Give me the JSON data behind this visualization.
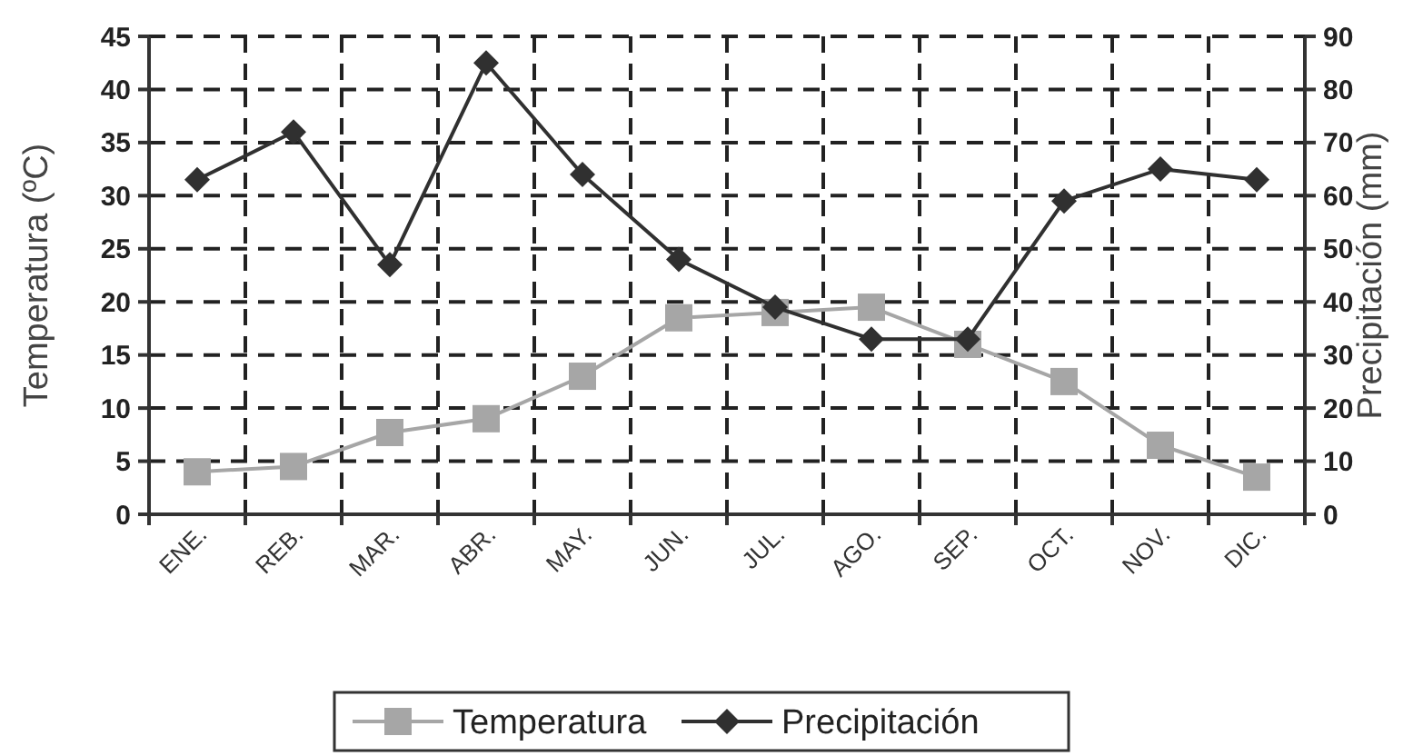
{
  "chart_data": {
    "type": "line",
    "ylabel": "Temperatura (ºC)",
    "y2label": "Precipitación (mm)",
    "categories": [
      "ENE.",
      "REB.",
      "MAR.",
      "ABR.",
      "MAY.",
      "JUN.",
      "JUL.",
      "AGO.",
      "SEP.",
      "OCT.",
      "NOV.",
      "DIC."
    ],
    "series": [
      {
        "name": "Temperatura",
        "color": "#a6a6a6",
        "marker": "square",
        "values": [
          4,
          4.5,
          7.7,
          9,
          13,
          18.5,
          19,
          19.5,
          16,
          12.5,
          6.5,
          3.5
        ]
      },
      {
        "name": "Precipitación",
        "color": "#303030",
        "marker": "diamond",
        "axis": "y2",
        "values": [
          63,
          72,
          47,
          85,
          64,
          48,
          39,
          33,
          33,
          59,
          65,
          63
        ]
      }
    ],
    "ylim": [
      0,
      45
    ],
    "yticks": [
      0,
      5,
      10,
      15,
      20,
      25,
      30,
      35,
      40,
      45
    ],
    "y2lim": [
      0,
      90
    ],
    "y2ticks": [
      0,
      10,
      20,
      30,
      40,
      50,
      60,
      70,
      80,
      90
    ],
    "grid": true,
    "legend": "bottom",
    "line_style": "solid"
  }
}
